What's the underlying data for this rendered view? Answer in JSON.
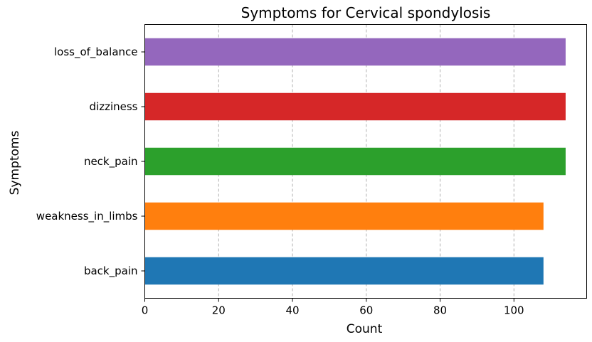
{
  "chart_data": {
    "type": "bar",
    "orientation": "horizontal",
    "title": "Symptoms for Cervical spondylosis",
    "xlabel": "Count",
    "ylabel": "Symptoms",
    "categories": [
      "back_pain",
      "weakness_in_limbs",
      "neck_pain",
      "dizziness",
      "loss_of_balance"
    ],
    "values": [
      108,
      108,
      114,
      114,
      114
    ],
    "colors": [
      "#1f77b4",
      "#ff7f0e",
      "#2ca02c",
      "#d62728",
      "#9467bd"
    ],
    "xlim": [
      0,
      119.7
    ],
    "xticks": [
      0,
      20,
      40,
      60,
      80,
      100
    ],
    "grid": "x-dashed",
    "legend": "none"
  }
}
